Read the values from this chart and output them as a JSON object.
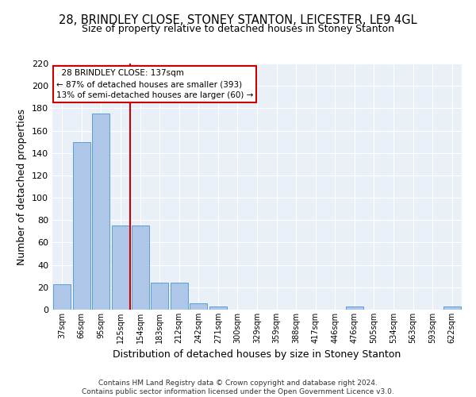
{
  "title1": "28, BRINDLEY CLOSE, STONEY STANTON, LEICESTER, LE9 4GL",
  "title2": "Size of property relative to detached houses in Stoney Stanton",
  "xlabel": "Distribution of detached houses by size in Stoney Stanton",
  "ylabel": "Number of detached properties",
  "categories": [
    "37sqm",
    "66sqm",
    "95sqm",
    "125sqm",
    "154sqm",
    "183sqm",
    "212sqm",
    "242sqm",
    "271sqm",
    "300sqm",
    "329sqm",
    "359sqm",
    "388sqm",
    "417sqm",
    "446sqm",
    "476sqm",
    "505sqm",
    "534sqm",
    "563sqm",
    "593sqm",
    "622sqm"
  ],
  "values": [
    23,
    150,
    175,
    75,
    75,
    24,
    24,
    6,
    3,
    0,
    0,
    0,
    0,
    0,
    0,
    3,
    0,
    0,
    0,
    0,
    3
  ],
  "bar_color": "#aec6e8",
  "bar_edge_color": "#5a9fd4",
  "vline_x": 3.5,
  "vline_color": "#cc0000",
  "annotation_text_line1": "  28 BRINDLEY CLOSE: 137sqm  ",
  "annotation_text_line2": "← 87% of detached houses are smaller (393)",
  "annotation_text_line3": "13% of semi-detached houses are larger (60) →",
  "annotation_box_color": "#cc0000",
  "ylim": [
    0,
    220
  ],
  "yticks": [
    0,
    20,
    40,
    60,
    80,
    100,
    120,
    140,
    160,
    180,
    200,
    220
  ],
  "footer1": "Contains HM Land Registry data © Crown copyright and database right 2024.",
  "footer2": "Contains public sector information licensed under the Open Government Licence v3.0.",
  "bg_color": "#eaf0f8",
  "title1_fontsize": 10.5,
  "title2_fontsize": 9,
  "xlabel_fontsize": 9,
  "ylabel_fontsize": 9,
  "footer_fontsize": 6.5
}
